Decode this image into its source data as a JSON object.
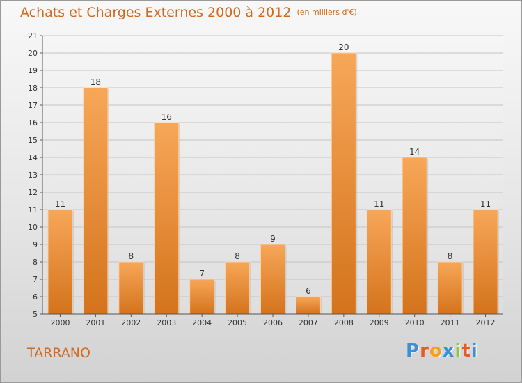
{
  "chart_data": {
    "type": "bar",
    "title": "Achats et Charges Externes 2000 à 2012",
    "subtitle": "(en milliers d'€)",
    "categories": [
      "2000",
      "2001",
      "2002",
      "2003",
      "2004",
      "2005",
      "2006",
      "2007",
      "2008",
      "2009",
      "2010",
      "2011",
      "2012"
    ],
    "values": [
      11,
      18,
      8,
      16,
      7,
      8,
      9,
      6,
      20,
      11,
      14,
      8,
      11
    ],
    "ylim": [
      5,
      21
    ],
    "yticks": [
      5,
      6,
      7,
      8,
      9,
      10,
      11,
      12,
      13,
      14,
      15,
      16,
      17,
      18,
      19,
      20,
      21
    ],
    "grid": true,
    "bar_color": "#e8832a"
  },
  "location": "TARRANO",
  "brand": {
    "letters": [
      "P",
      "r",
      "o",
      "x",
      "i",
      "t",
      "i"
    ],
    "colors": [
      "#3a8fd6",
      "#e85a24",
      "#f4a21c",
      "#3a8fd6",
      "#8dc63f",
      "#e85a24",
      "#3a8fd6"
    ]
  }
}
